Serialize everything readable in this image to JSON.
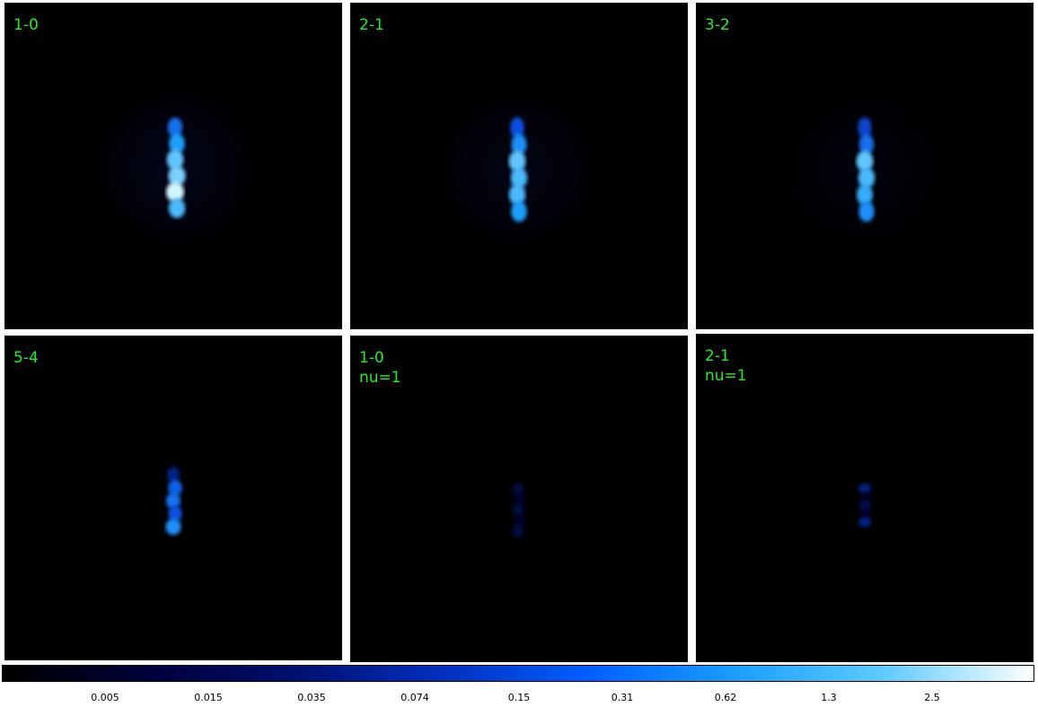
{
  "panels": [
    {
      "label": "1-0",
      "halo": 0.3,
      "core": [
        0.55,
        0.7,
        0.85,
        0.9,
        1.0,
        0.8
      ]
    },
    {
      "label": "2-1",
      "halo": 0.25,
      "core": [
        0.45,
        0.65,
        0.85,
        0.8,
        0.8,
        0.7
      ]
    },
    {
      "label": "3-2",
      "halo": 0.15,
      "core": [
        0.4,
        0.55,
        0.85,
        0.8,
        0.75,
        0.65
      ]
    },
    {
      "label": "5-4",
      "halo": 0.0,
      "core": [
        0.25,
        0.5,
        0.55,
        0.45,
        0.65,
        0.0
      ]
    },
    {
      "label": "1-0\nnu=1",
      "halo": 0.0,
      "core": [
        0.1,
        0.05,
        0.1,
        0.05,
        0.1,
        0.0
      ]
    },
    {
      "label": "2-1\nnu=1",
      "halo": 0.0,
      "core": [
        0.25,
        0.05,
        0.15,
        0.05,
        0.25,
        0.0
      ]
    }
  ],
  "colorbar": {
    "ticks": [
      "0.005",
      "0.015",
      "0.035",
      "0.074",
      "0.15",
      "0.31",
      "0.62",
      "1.3",
      "2.5"
    ],
    "stops": [
      "#000000",
      "#00003a",
      "#001070",
      "#0030c0",
      "#0060ff",
      "#1aa0ff",
      "#60ccff",
      "#ffffff"
    ]
  },
  "colors": {
    "label": "#22ee22",
    "background": "#000000"
  }
}
